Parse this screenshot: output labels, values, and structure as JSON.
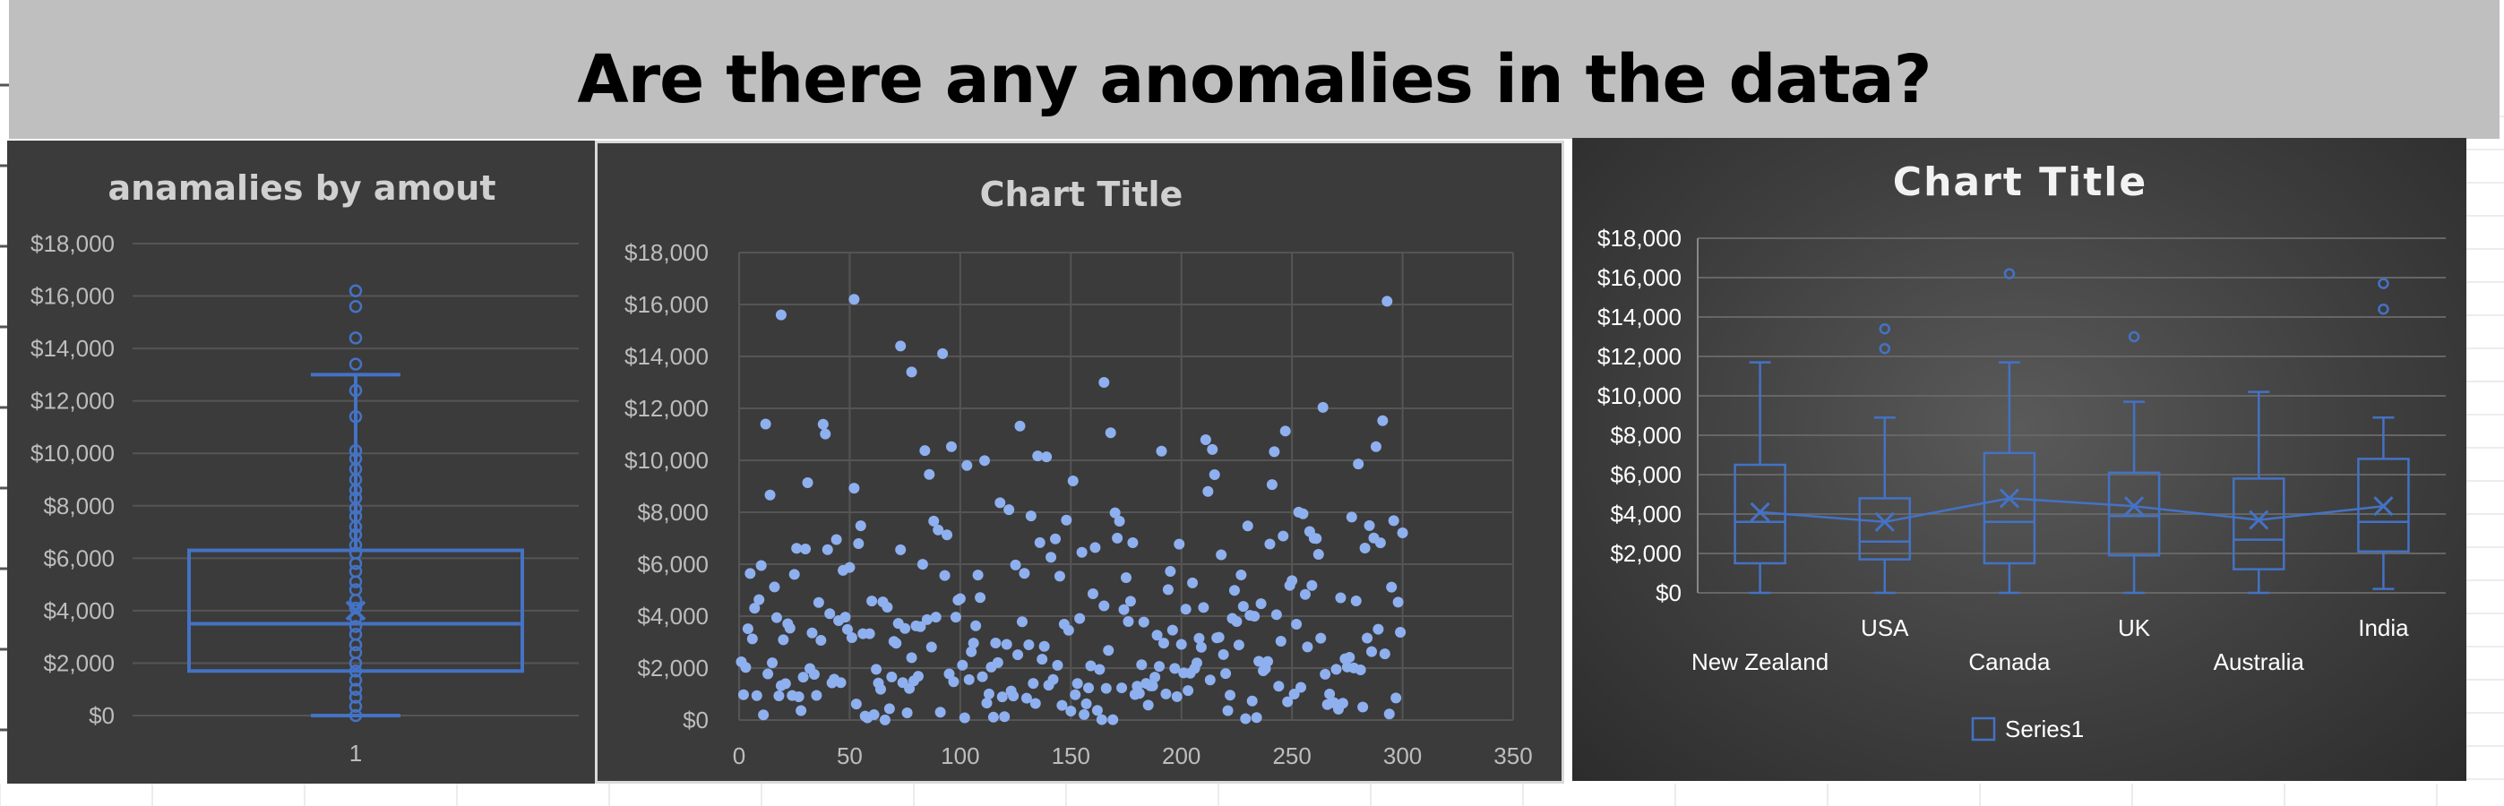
{
  "page": {
    "heading": "Are there any anomalies in the data?"
  },
  "colors": {
    "banner": "#bfbfbf",
    "chart_bg": "#3b3b3b",
    "accent": "#4472c4",
    "marker": "#8fb0ef"
  },
  "chart_data": [
    {
      "type": "box",
      "title": "anamalies by amout",
      "categories": [
        "1"
      ],
      "ylim": [
        0,
        18000
      ],
      "yticks": [
        "$0",
        "$2,000",
        "$4,000",
        "$6,000",
        "$8,000",
        "$10,000",
        "$12,000",
        "$14,000",
        "$16,000",
        "$18,000"
      ],
      "box": {
        "min": 0,
        "q1": 1700,
        "median": 3500,
        "mean": 4000,
        "q3": 6300,
        "whisker_high": 13000
      },
      "inner_points": [
        0,
        350,
        700,
        1000,
        1350,
        1700,
        2000,
        2400,
        2700,
        3100,
        3400,
        3700,
        4100,
        4400,
        4800,
        5100,
        5500,
        5800,
        6200,
        6500,
        6900,
        7200,
        7600,
        7900,
        8300,
        8600,
        9000,
        9400,
        9800,
        10100
      ],
      "outliers": [
        11400,
        12400,
        13400,
        14400,
        15600,
        16200
      ],
      "grid": true
    },
    {
      "type": "scatter",
      "title": "Chart Title",
      "xlim": [
        0,
        350
      ],
      "ylim": [
        0,
        18000
      ],
      "xticks": [
        "0",
        "50",
        "100",
        "150",
        "200",
        "250",
        "300",
        "350"
      ],
      "yticks": [
        "$0",
        "$2,000",
        "$4,000",
        "$6,000",
        "$8,000",
        "$10,000",
        "$12,000",
        "$14,000",
        "$16,000",
        "$18,000"
      ],
      "grid": true,
      "points": []
    },
    {
      "type": "box",
      "title": "Chart Title",
      "categories": [
        "New Zealand",
        "USA",
        "Canada",
        "UK",
        "Australia",
        "India"
      ],
      "ylim": [
        0,
        18000
      ],
      "yticks": [
        "$0",
        "$2,000",
        "$4,000",
        "$6,000",
        "$8,000",
        "$10,000",
        "$12,000",
        "$14,000",
        "$16,000",
        "$18,000"
      ],
      "legend": [
        "Series1"
      ],
      "legend_position": "bottom",
      "boxes": [
        {
          "min": 0,
          "q1": 1500,
          "median": 3600,
          "mean": 4100,
          "q3": 6500,
          "max": 11700,
          "outliers": []
        },
        {
          "min": 0,
          "q1": 1700,
          "median": 2600,
          "mean": 3600,
          "q3": 4800,
          "max": 8900,
          "outliers": [
            12400,
            13400
          ]
        },
        {
          "min": 0,
          "q1": 1500,
          "median": 3600,
          "mean": 4800,
          "q3": 7100,
          "max": 11700,
          "outliers": [
            16200
          ]
        },
        {
          "min": 0,
          "q1": 1900,
          "median": 3900,
          "mean": 4400,
          "q3": 6100,
          "max": 9700,
          "outliers": [
            13000
          ]
        },
        {
          "min": 0,
          "q1": 1200,
          "median": 2700,
          "mean": 3700,
          "q3": 5800,
          "max": 10200,
          "outliers": []
        },
        {
          "min": 200,
          "q1": 2100,
          "median": 3600,
          "mean": 4400,
          "q3": 6800,
          "max": 8900,
          "outliers": [
            14400,
            15700
          ]
        }
      ]
    }
  ]
}
